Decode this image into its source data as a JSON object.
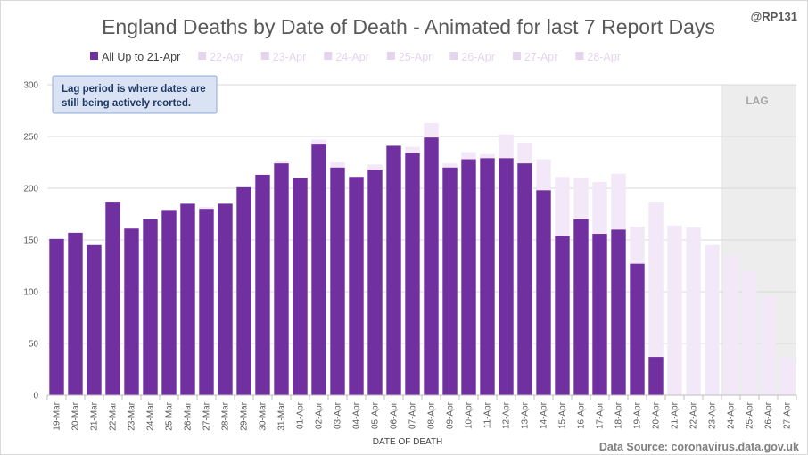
{
  "chart_data": {
    "type": "bar",
    "title": "England Deaths by Date of Death - Animated for last 7 Report Days",
    "handle": "@RP131",
    "xlabel": "DATE OF DEATH",
    "ylabel": "",
    "ylim": [
      0,
      300
    ],
    "yticks": [
      0,
      50,
      100,
      150,
      200,
      250,
      300
    ],
    "grid": true,
    "legend_position": "top",
    "source": "Data Source: coronavirus.data.gov.uk",
    "lag_label": "LAG",
    "lag_start": "24-Apr",
    "annotation": {
      "line1": "Lag period is where dates are",
      "line2": "still being actively reorted."
    },
    "categories": [
      "19-Mar",
      "20-Mar",
      "21-Mar",
      "22-Mar",
      "23-Mar",
      "24-Mar",
      "25-Mar",
      "26-Mar",
      "27-Mar",
      "28-Mar",
      "29-Mar",
      "30-Mar",
      "31-Mar",
      "01-Apr",
      "02-Apr",
      "03-Apr",
      "04-Apr",
      "05-Apr",
      "06-Apr",
      "07-Apr",
      "08-Apr",
      "09-Apr",
      "10-Apr",
      "11-Apr",
      "12-Apr",
      "13-Apr",
      "14-Apr",
      "15-Apr",
      "16-Apr",
      "17-Apr",
      "18-Apr",
      "19-Apr",
      "20-Apr",
      "21-Apr",
      "22-Apr",
      "23-Apr",
      "24-Apr",
      "25-Apr",
      "26-Apr",
      "27-Apr"
    ],
    "series": [
      {
        "name": "All Up to 21-Apr",
        "color": "#7030a0",
        "values": [
          151,
          157,
          145,
          187,
          161,
          170,
          179,
          185,
          180,
          185,
          201,
          213,
          224,
          210,
          243,
          220,
          211,
          218,
          241,
          234,
          249,
          220,
          228,
          229,
          229,
          224,
          198,
          154,
          170,
          156,
          160,
          127,
          37,
          0,
          0,
          0,
          0,
          0,
          0,
          0
        ]
      },
      {
        "name": "22-Apr",
        "color": "#f2e8f8",
        "values": [
          151,
          157,
          145,
          187,
          161,
          170,
          179,
          185,
          182,
          185,
          201,
          213,
          226,
          210,
          247,
          225,
          211,
          223,
          241,
          240,
          263,
          224,
          235,
          233,
          252,
          244,
          228,
          211,
          210,
          206,
          214,
          163,
          187,
          164,
          0,
          0,
          0,
          0,
          0,
          0
        ]
      },
      {
        "name": "23-Apr",
        "color": "#f2e8f8",
        "values": [
          151,
          157,
          145,
          187,
          161,
          170,
          179,
          185,
          182,
          185,
          201,
          213,
          226,
          210,
          247,
          225,
          211,
          223,
          241,
          240,
          263,
          224,
          235,
          233,
          252,
          244,
          228,
          211,
          210,
          206,
          214,
          163,
          187,
          164,
          162,
          0,
          0,
          0,
          0,
          0
        ]
      },
      {
        "name": "24-Apr",
        "color": "#f2e8f8",
        "values": [
          151,
          157,
          145,
          187,
          161,
          170,
          179,
          185,
          182,
          185,
          201,
          213,
          226,
          210,
          247,
          225,
          211,
          223,
          241,
          240,
          263,
          224,
          235,
          233,
          252,
          244,
          228,
          211,
          210,
          206,
          214,
          163,
          187,
          164,
          162,
          145,
          0,
          0,
          0,
          0
        ]
      },
      {
        "name": "25-Apr",
        "color": "#f2e8f8",
        "values": [
          151,
          157,
          145,
          187,
          161,
          170,
          179,
          185,
          182,
          185,
          201,
          213,
          226,
          210,
          247,
          225,
          211,
          223,
          241,
          240,
          263,
          224,
          235,
          233,
          252,
          244,
          228,
          211,
          210,
          206,
          214,
          163,
          187,
          164,
          162,
          145,
          135,
          0,
          0,
          0
        ]
      },
      {
        "name": "26-Apr",
        "color": "#f2e8f8",
        "values": [
          151,
          157,
          145,
          187,
          161,
          170,
          179,
          185,
          182,
          185,
          201,
          213,
          226,
          210,
          247,
          225,
          211,
          223,
          241,
          240,
          263,
          224,
          235,
          233,
          252,
          244,
          228,
          211,
          210,
          206,
          214,
          163,
          187,
          164,
          162,
          145,
          135,
          120,
          0,
          0
        ]
      },
      {
        "name": "27-Apr",
        "color": "#f2e8f8",
        "values": [
          151,
          157,
          145,
          187,
          161,
          170,
          179,
          185,
          182,
          185,
          201,
          213,
          226,
          210,
          247,
          225,
          211,
          223,
          241,
          240,
          263,
          224,
          235,
          233,
          252,
          244,
          228,
          211,
          210,
          206,
          214,
          163,
          187,
          164,
          162,
          145,
          135,
          120,
          95,
          0
        ]
      },
      {
        "name": "28-Apr",
        "color": "#f2e8f8",
        "values": [
          151,
          157,
          145,
          187,
          161,
          170,
          179,
          185,
          182,
          185,
          201,
          213,
          226,
          210,
          247,
          225,
          211,
          223,
          241,
          240,
          263,
          224,
          235,
          233,
          252,
          244,
          228,
          211,
          210,
          206,
          214,
          163,
          187,
          164,
          162,
          145,
          135,
          120,
          95,
          36
        ]
      }
    ],
    "legend_text_color_active": "#404040",
    "legend_text_color_faded": "#e4d4ee",
    "lag_color": "#ededed",
    "note_fill": "#dae3f3",
    "note_border": "#8faadc"
  }
}
